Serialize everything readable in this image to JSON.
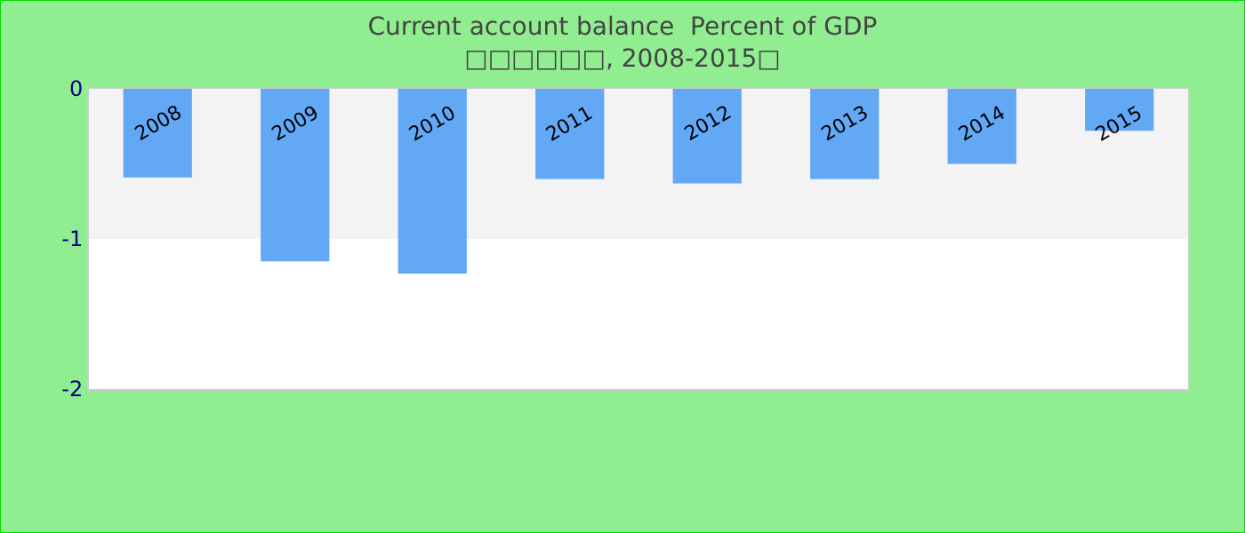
{
  "chart_data": {
    "type": "bar",
    "title": "Current account balance  Percent of GDP",
    "subtitle": "□□□□□□, 2008-2015□",
    "categories": [
      "2008",
      "2009",
      "2010",
      "2011",
      "2012",
      "2013",
      "2014",
      "2015"
    ],
    "values": [
      -0.59,
      -1.15,
      -1.23,
      -0.6,
      -0.63,
      -0.6,
      -0.5,
      -0.28
    ],
    "color": "#62a8f5",
    "ylim": [
      -2,
      0
    ],
    "yticks": [
      -2,
      -1,
      0
    ],
    "bands": [
      {
        "axis": "y",
        "from": -1,
        "to": 0,
        "color": "#f3f3f3"
      }
    ]
  }
}
